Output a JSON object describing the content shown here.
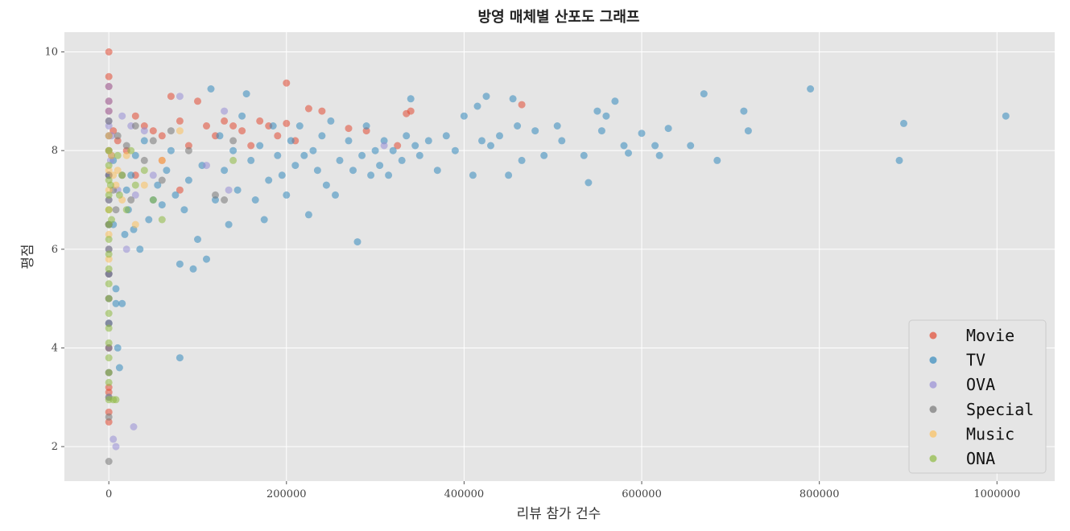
{
  "chart_data": {
    "type": "scatter",
    "title": "방영 매체별 산포도 그래프",
    "xlabel": "리뷰 참가 건수",
    "ylabel": "평점",
    "xlim": [
      -50000,
      1065000
    ],
    "ylim": [
      1.3,
      10.4
    ],
    "xticks": [
      0,
      200000,
      400000,
      600000,
      800000,
      1000000
    ],
    "xtick_labels": [
      "0",
      "200000",
      "400000",
      "600000",
      "800000",
      "1000000"
    ],
    "yticks": [
      2,
      4,
      6,
      8,
      10
    ],
    "ytick_labels": [
      "2",
      "4",
      "6",
      "8",
      "10"
    ],
    "grid": true,
    "legend_position": "bottom-right",
    "series": [
      {
        "name": "Movie",
        "color": "#e24a33",
        "points": [
          [
            0,
            10.0
          ],
          [
            0,
            9.5
          ],
          [
            0,
            9.3
          ],
          [
            0,
            9.0
          ],
          [
            0,
            8.8
          ],
          [
            0,
            7.5
          ],
          [
            0,
            6.5
          ],
          [
            0,
            5.5
          ],
          [
            0,
            4.0
          ],
          [
            0,
            3.2
          ],
          [
            0,
            3.1
          ],
          [
            0,
            2.7
          ],
          [
            0,
            2.5
          ],
          [
            5000,
            8.4
          ],
          [
            10000,
            8.2
          ],
          [
            20000,
            8.0
          ],
          [
            30000,
            8.7
          ],
          [
            40000,
            8.5
          ],
          [
            50000,
            8.4
          ],
          [
            60000,
            8.3
          ],
          [
            70000,
            9.1
          ],
          [
            80000,
            8.6
          ],
          [
            90000,
            8.1
          ],
          [
            100000,
            9.0
          ],
          [
            110000,
            8.5
          ],
          [
            120000,
            8.3
          ],
          [
            130000,
            8.6
          ],
          [
            140000,
            8.5
          ],
          [
            150000,
            8.4
          ],
          [
            160000,
            8.1
          ],
          [
            170000,
            8.6
          ],
          [
            180000,
            8.5
          ],
          [
            190000,
            8.3
          ],
          [
            200000,
            8.55
          ],
          [
            200000,
            9.37
          ],
          [
            210000,
            8.2
          ],
          [
            225000,
            8.85
          ],
          [
            240000,
            8.8
          ],
          [
            270000,
            8.45
          ],
          [
            290000,
            8.4
          ],
          [
            325000,
            8.1
          ],
          [
            335000,
            8.75
          ],
          [
            340000,
            8.8
          ],
          [
            465000,
            8.93
          ],
          [
            30000,
            7.5
          ],
          [
            60000,
            7.8
          ],
          [
            80000,
            7.2
          ]
        ]
      },
      {
        "name": "TV",
        "color": "#348abd",
        "points": [
          [
            0,
            7.5
          ],
          [
            0,
            6.5
          ],
          [
            0,
            5.5
          ],
          [
            0,
            4.5
          ],
          [
            5000,
            7.8
          ],
          [
            5000,
            6.5
          ],
          [
            8000,
            5.2
          ],
          [
            8000,
            4.9
          ],
          [
            10000,
            4.0
          ],
          [
            12000,
            3.6
          ],
          [
            15000,
            4.9
          ],
          [
            18000,
            6.3
          ],
          [
            20000,
            7.2
          ],
          [
            22000,
            6.8
          ],
          [
            25000,
            7.5
          ],
          [
            28000,
            6.4
          ],
          [
            30000,
            7.9
          ],
          [
            35000,
            6.0
          ],
          [
            40000,
            8.2
          ],
          [
            45000,
            6.6
          ],
          [
            50000,
            7.0
          ],
          [
            55000,
            7.3
          ],
          [
            60000,
            6.9
          ],
          [
            65000,
            7.6
          ],
          [
            70000,
            8.0
          ],
          [
            75000,
            7.1
          ],
          [
            80000,
            3.8
          ],
          [
            80000,
            5.7
          ],
          [
            85000,
            6.8
          ],
          [
            90000,
            7.4
          ],
          [
            95000,
            5.6
          ],
          [
            100000,
            6.2
          ],
          [
            105000,
            7.7
          ],
          [
            110000,
            5.8
          ],
          [
            115000,
            9.25
          ],
          [
            120000,
            7.0
          ],
          [
            125000,
            8.3
          ],
          [
            130000,
            7.6
          ],
          [
            135000,
            6.5
          ],
          [
            140000,
            8.0
          ],
          [
            145000,
            7.2
          ],
          [
            150000,
            8.7
          ],
          [
            155000,
            9.15
          ],
          [
            160000,
            7.8
          ],
          [
            165000,
            7.0
          ],
          [
            170000,
            8.1
          ],
          [
            175000,
            6.6
          ],
          [
            180000,
            7.4
          ],
          [
            185000,
            8.5
          ],
          [
            190000,
            7.9
          ],
          [
            195000,
            7.5
          ],
          [
            200000,
            7.1
          ],
          [
            205000,
            8.2
          ],
          [
            210000,
            7.7
          ],
          [
            215000,
            8.5
          ],
          [
            220000,
            7.9
          ],
          [
            225000,
            6.7
          ],
          [
            230000,
            8.0
          ],
          [
            235000,
            7.6
          ],
          [
            240000,
            8.3
          ],
          [
            245000,
            7.3
          ],
          [
            250000,
            8.6
          ],
          [
            255000,
            7.1
          ],
          [
            260000,
            7.8
          ],
          [
            270000,
            8.2
          ],
          [
            275000,
            7.6
          ],
          [
            280000,
            6.15
          ],
          [
            285000,
            7.9
          ],
          [
            290000,
            8.5
          ],
          [
            295000,
            7.5
          ],
          [
            300000,
            8.0
          ],
          [
            305000,
            7.7
          ],
          [
            310000,
            8.2
          ],
          [
            315000,
            7.5
          ],
          [
            320000,
            8.0
          ],
          [
            330000,
            7.8
          ],
          [
            335000,
            8.3
          ],
          [
            340000,
            9.05
          ],
          [
            345000,
            8.1
          ],
          [
            350000,
            7.9
          ],
          [
            360000,
            8.2
          ],
          [
            370000,
            7.6
          ],
          [
            380000,
            8.3
          ],
          [
            390000,
            8.0
          ],
          [
            400000,
            8.7
          ],
          [
            410000,
            7.5
          ],
          [
            415000,
            8.9
          ],
          [
            420000,
            8.2
          ],
          [
            425000,
            9.1
          ],
          [
            430000,
            8.1
          ],
          [
            440000,
            8.3
          ],
          [
            450000,
            7.5
          ],
          [
            455000,
            9.05
          ],
          [
            460000,
            8.5
          ],
          [
            465000,
            7.8
          ],
          [
            480000,
            8.4
          ],
          [
            490000,
            7.9
          ],
          [
            505000,
            8.5
          ],
          [
            510000,
            8.2
          ],
          [
            535000,
            7.9
          ],
          [
            540000,
            7.35
          ],
          [
            550000,
            8.8
          ],
          [
            555000,
            8.4
          ],
          [
            560000,
            8.7
          ],
          [
            570000,
            9.0
          ],
          [
            580000,
            8.1
          ],
          [
            585000,
            7.95
          ],
          [
            600000,
            8.35
          ],
          [
            615000,
            8.1
          ],
          [
            620000,
            7.9
          ],
          [
            630000,
            8.45
          ],
          [
            655000,
            8.1
          ],
          [
            670000,
            9.15
          ],
          [
            685000,
            7.8
          ],
          [
            715000,
            8.8
          ],
          [
            720000,
            8.4
          ],
          [
            790000,
            9.25
          ],
          [
            890000,
            7.8
          ],
          [
            895000,
            8.55
          ],
          [
            1010000,
            8.7
          ]
        ]
      },
      {
        "name": "OVA",
        "color": "#988ed5",
        "points": [
          [
            0,
            9.3
          ],
          [
            0,
            9.0
          ],
          [
            0,
            8.8
          ],
          [
            0,
            8.6
          ],
          [
            0,
            8.5
          ],
          [
            0,
            8.3
          ],
          [
            0,
            8.0
          ],
          [
            0,
            7.5
          ],
          [
            0,
            7.0
          ],
          [
            0,
            6.5
          ],
          [
            0,
            6.0
          ],
          [
            0,
            5.5
          ],
          [
            0,
            5.0
          ],
          [
            0,
            4.5
          ],
          [
            0,
            4.0
          ],
          [
            0,
            3.5
          ],
          [
            0,
            3.0
          ],
          [
            2000,
            7.8
          ],
          [
            3000,
            8.3
          ],
          [
            5000,
            2.15
          ],
          [
            8000,
            2.0
          ],
          [
            10000,
            7.2
          ],
          [
            15000,
            8.7
          ],
          [
            20000,
            6.0
          ],
          [
            25000,
            8.5
          ],
          [
            28000,
            2.4
          ],
          [
            30000,
            7.1
          ],
          [
            40000,
            8.4
          ],
          [
            50000,
            7.5
          ],
          [
            80000,
            9.1
          ],
          [
            110000,
            7.7
          ],
          [
            130000,
            8.8
          ],
          [
            135000,
            7.2
          ],
          [
            310000,
            8.1
          ]
        ]
      },
      {
        "name": "Special",
        "color": "#777777",
        "points": [
          [
            0,
            8.6
          ],
          [
            0,
            8.3
          ],
          [
            0,
            8.0
          ],
          [
            0,
            7.5
          ],
          [
            0,
            7.0
          ],
          [
            0,
            6.5
          ],
          [
            0,
            6.0
          ],
          [
            0,
            5.5
          ],
          [
            0,
            5.0
          ],
          [
            0,
            4.5
          ],
          [
            0,
            4.0
          ],
          [
            0,
            3.5
          ],
          [
            0,
            3.0
          ],
          [
            0,
            2.6
          ],
          [
            0,
            1.7
          ],
          [
            3000,
            7.9
          ],
          [
            5000,
            7.2
          ],
          [
            8000,
            6.8
          ],
          [
            10000,
            8.3
          ],
          [
            15000,
            7.5
          ],
          [
            20000,
            8.1
          ],
          [
            25000,
            7.0
          ],
          [
            30000,
            8.5
          ],
          [
            40000,
            7.8
          ],
          [
            50000,
            8.2
          ],
          [
            60000,
            7.4
          ],
          [
            70000,
            8.4
          ],
          [
            90000,
            8.0
          ],
          [
            120000,
            7.1
          ],
          [
            130000,
            7.0
          ],
          [
            140000,
            8.2
          ]
        ]
      },
      {
        "name": "Music",
        "color": "#fbc15e",
        "points": [
          [
            0,
            8.3
          ],
          [
            0,
            8.0
          ],
          [
            0,
            7.6
          ],
          [
            0,
            7.2
          ],
          [
            0,
            6.8
          ],
          [
            0,
            6.3
          ],
          [
            0,
            5.8
          ],
          [
            3000,
            7.9
          ],
          [
            5000,
            7.5
          ],
          [
            8000,
            7.3
          ],
          [
            10000,
            7.6
          ],
          [
            15000,
            7.0
          ],
          [
            20000,
            7.9
          ],
          [
            30000,
            6.5
          ],
          [
            40000,
            7.3
          ],
          [
            60000,
            7.8
          ],
          [
            80000,
            8.4
          ]
        ]
      },
      {
        "name": "ONA",
        "color": "#8eba42",
        "points": [
          [
            0,
            8.0
          ],
          [
            0,
            7.7
          ],
          [
            0,
            7.4
          ],
          [
            0,
            7.1
          ],
          [
            0,
            6.8
          ],
          [
            0,
            6.5
          ],
          [
            0,
            6.2
          ],
          [
            0,
            5.9
          ],
          [
            0,
            5.6
          ],
          [
            0,
            5.3
          ],
          [
            0,
            5.0
          ],
          [
            0,
            4.7
          ],
          [
            0,
            4.4
          ],
          [
            0,
            4.1
          ],
          [
            0,
            3.8
          ],
          [
            0,
            3.5
          ],
          [
            0,
            3.3
          ],
          [
            0,
            2.95
          ],
          [
            2000,
            7.3
          ],
          [
            3000,
            6.6
          ],
          [
            5000,
            2.95
          ],
          [
            8000,
            2.95
          ],
          [
            10000,
            7.9
          ],
          [
            12000,
            7.1
          ],
          [
            15000,
            7.5
          ],
          [
            20000,
            6.8
          ],
          [
            25000,
            8.0
          ],
          [
            30000,
            7.3
          ],
          [
            40000,
            7.6
          ],
          [
            50000,
            7.0
          ],
          [
            60000,
            6.6
          ],
          [
            140000,
            7.8
          ]
        ]
      }
    ]
  }
}
